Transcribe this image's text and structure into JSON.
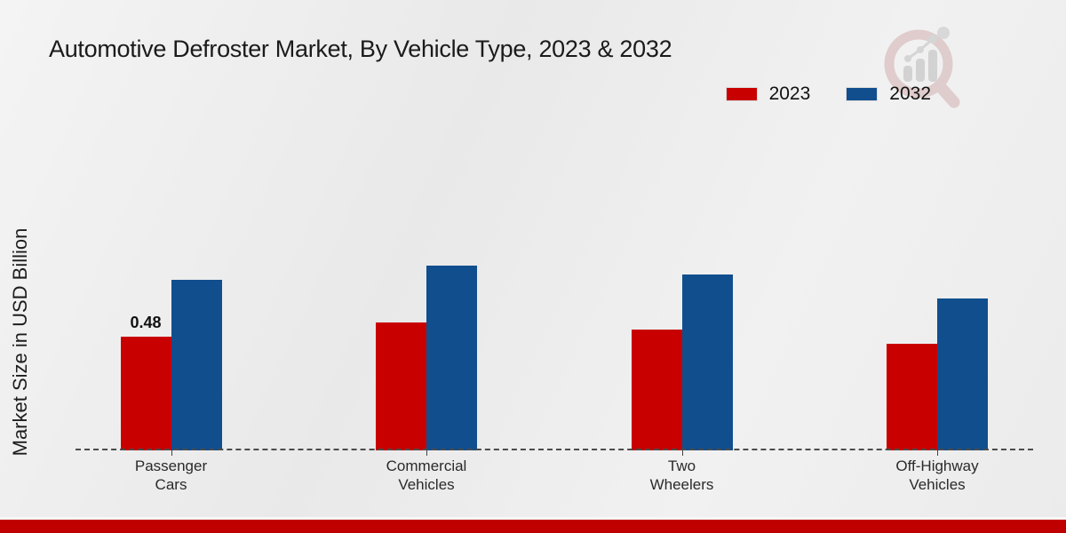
{
  "title": "Automotive Defroster Market, By Vehicle Type, 2023 & 2032",
  "y_axis_label": "Market Size in USD Billion",
  "legend": {
    "position": "top-right",
    "items": [
      {
        "label": "2023",
        "color": "#c80000"
      },
      {
        "label": "2032",
        "color": "#114e8e"
      }
    ]
  },
  "watermark_icon": "magnifier-bar-chart-logo",
  "colors": {
    "bar_2023": "#c80000",
    "bar_2032": "#114e8e",
    "footer_bar": "#c00000",
    "axis_line": "#4c4c4c",
    "background": "#ededed"
  },
  "chart_data": {
    "type": "bar",
    "categories": [
      "Passenger Cars",
      "Commercial Vehicles",
      "Two Wheelers",
      "Off-Highway Vehicles"
    ],
    "category_labels_two_line": [
      "Passenger\nCars",
      "Commercial\nVehicles",
      "Two\nWheelers",
      "Off-Highway\nVehicles"
    ],
    "series": [
      {
        "name": "2023",
        "color": "#c80000",
        "values": [
          0.48,
          0.54,
          0.51,
          0.45
        ]
      },
      {
        "name": "2032",
        "color": "#114e8e",
        "values": [
          0.72,
          0.78,
          0.74,
          0.64
        ]
      }
    ],
    "data_labels": [
      {
        "series": "2023",
        "category": "Passenger Cars",
        "text": "0.48"
      }
    ],
    "title": "Automotive Defroster Market, By Vehicle Type, 2023 & 2032",
    "xlabel": "",
    "ylabel": "Market Size in USD Billion",
    "ylim": [
      0,
      0.9
    ],
    "grid": false,
    "y_axis_ticks_visible": false,
    "baseline_style": "dashed",
    "legend_position": "top-right"
  }
}
